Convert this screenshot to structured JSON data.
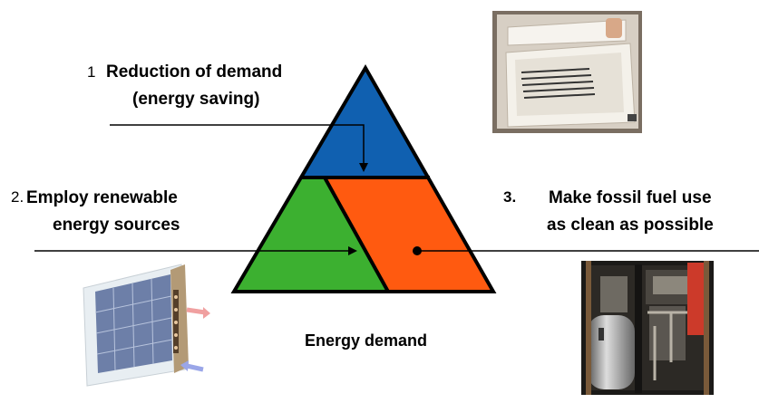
{
  "strategies": [
    {
      "number": "1",
      "line1": "Reduction of demand",
      "line2": "(energy saving)",
      "color": "#1060b0"
    },
    {
      "number": "2.",
      "line1": "Employ renewable",
      "line2": "energy sources",
      "color": "#3cb030"
    },
    {
      "number": "3.",
      "line1": "Make fossil fuel use",
      "line2": "as clean as possible",
      "color": "#ff5a10"
    }
  ],
  "base_label": "Energy demand",
  "illustrations": {
    "top_right": "insulated-box-photo",
    "bottom_left": "solar-panel-window-illustration",
    "bottom_right": "boiler-machinery-photo"
  }
}
